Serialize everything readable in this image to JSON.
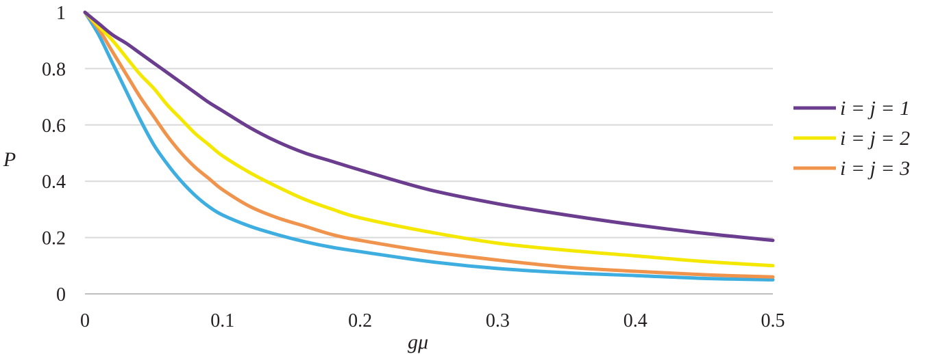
{
  "chart_data": {
    "type": "line",
    "title": "",
    "xlabel": "gμ",
    "ylabel": "P",
    "xlim": [
      0,
      0.5
    ],
    "ylim": [
      0,
      1
    ],
    "x_ticks": [
      "0",
      "0.1",
      "0.2",
      "0.3",
      "0.4",
      "0.5"
    ],
    "y_ticks": [
      "0",
      "0.2",
      "0.4",
      "0.6",
      "0.8",
      "1"
    ],
    "grid": true,
    "legend_position": "right",
    "x": [
      0,
      0.01,
      0.02,
      0.03,
      0.04,
      0.05,
      0.06,
      0.07,
      0.08,
      0.09,
      0.1,
      0.12,
      0.14,
      0.16,
      0.18,
      0.2,
      0.25,
      0.3,
      0.35,
      0.4,
      0.45,
      0.5
    ],
    "series": [
      {
        "name": "i = j = 1",
        "color": "#6a3d8f",
        "values": [
          1.0,
          0.96,
          0.92,
          0.89,
          0.855,
          0.82,
          0.785,
          0.75,
          0.715,
          0.68,
          0.65,
          0.59,
          0.54,
          0.5,
          0.47,
          0.44,
          0.37,
          0.32,
          0.28,
          0.245,
          0.215,
          0.19
        ]
      },
      {
        "name": "i = j = 2",
        "color": "#f5e800",
        "values": [
          1.0,
          0.95,
          0.9,
          0.84,
          0.78,
          0.73,
          0.67,
          0.62,
          0.57,
          0.53,
          0.49,
          0.43,
          0.38,
          0.335,
          0.3,
          0.27,
          0.22,
          0.18,
          0.155,
          0.135,
          0.115,
          0.1
        ]
      },
      {
        "name": "i = j = 3",
        "color": "#f0944d",
        "values": [
          1.0,
          0.94,
          0.86,
          0.78,
          0.7,
          0.63,
          0.56,
          0.5,
          0.45,
          0.41,
          0.37,
          0.31,
          0.27,
          0.24,
          0.21,
          0.19,
          0.15,
          0.12,
          0.095,
          0.08,
          0.068,
          0.06
        ]
      },
      {
        "color": "#3eaee0",
        "values": [
          1.0,
          0.92,
          0.82,
          0.72,
          0.62,
          0.53,
          0.46,
          0.4,
          0.35,
          0.31,
          0.28,
          0.24,
          0.21,
          0.185,
          0.165,
          0.15,
          0.115,
          0.09,
          0.075,
          0.065,
          0.055,
          0.05
        ]
      }
    ]
  }
}
